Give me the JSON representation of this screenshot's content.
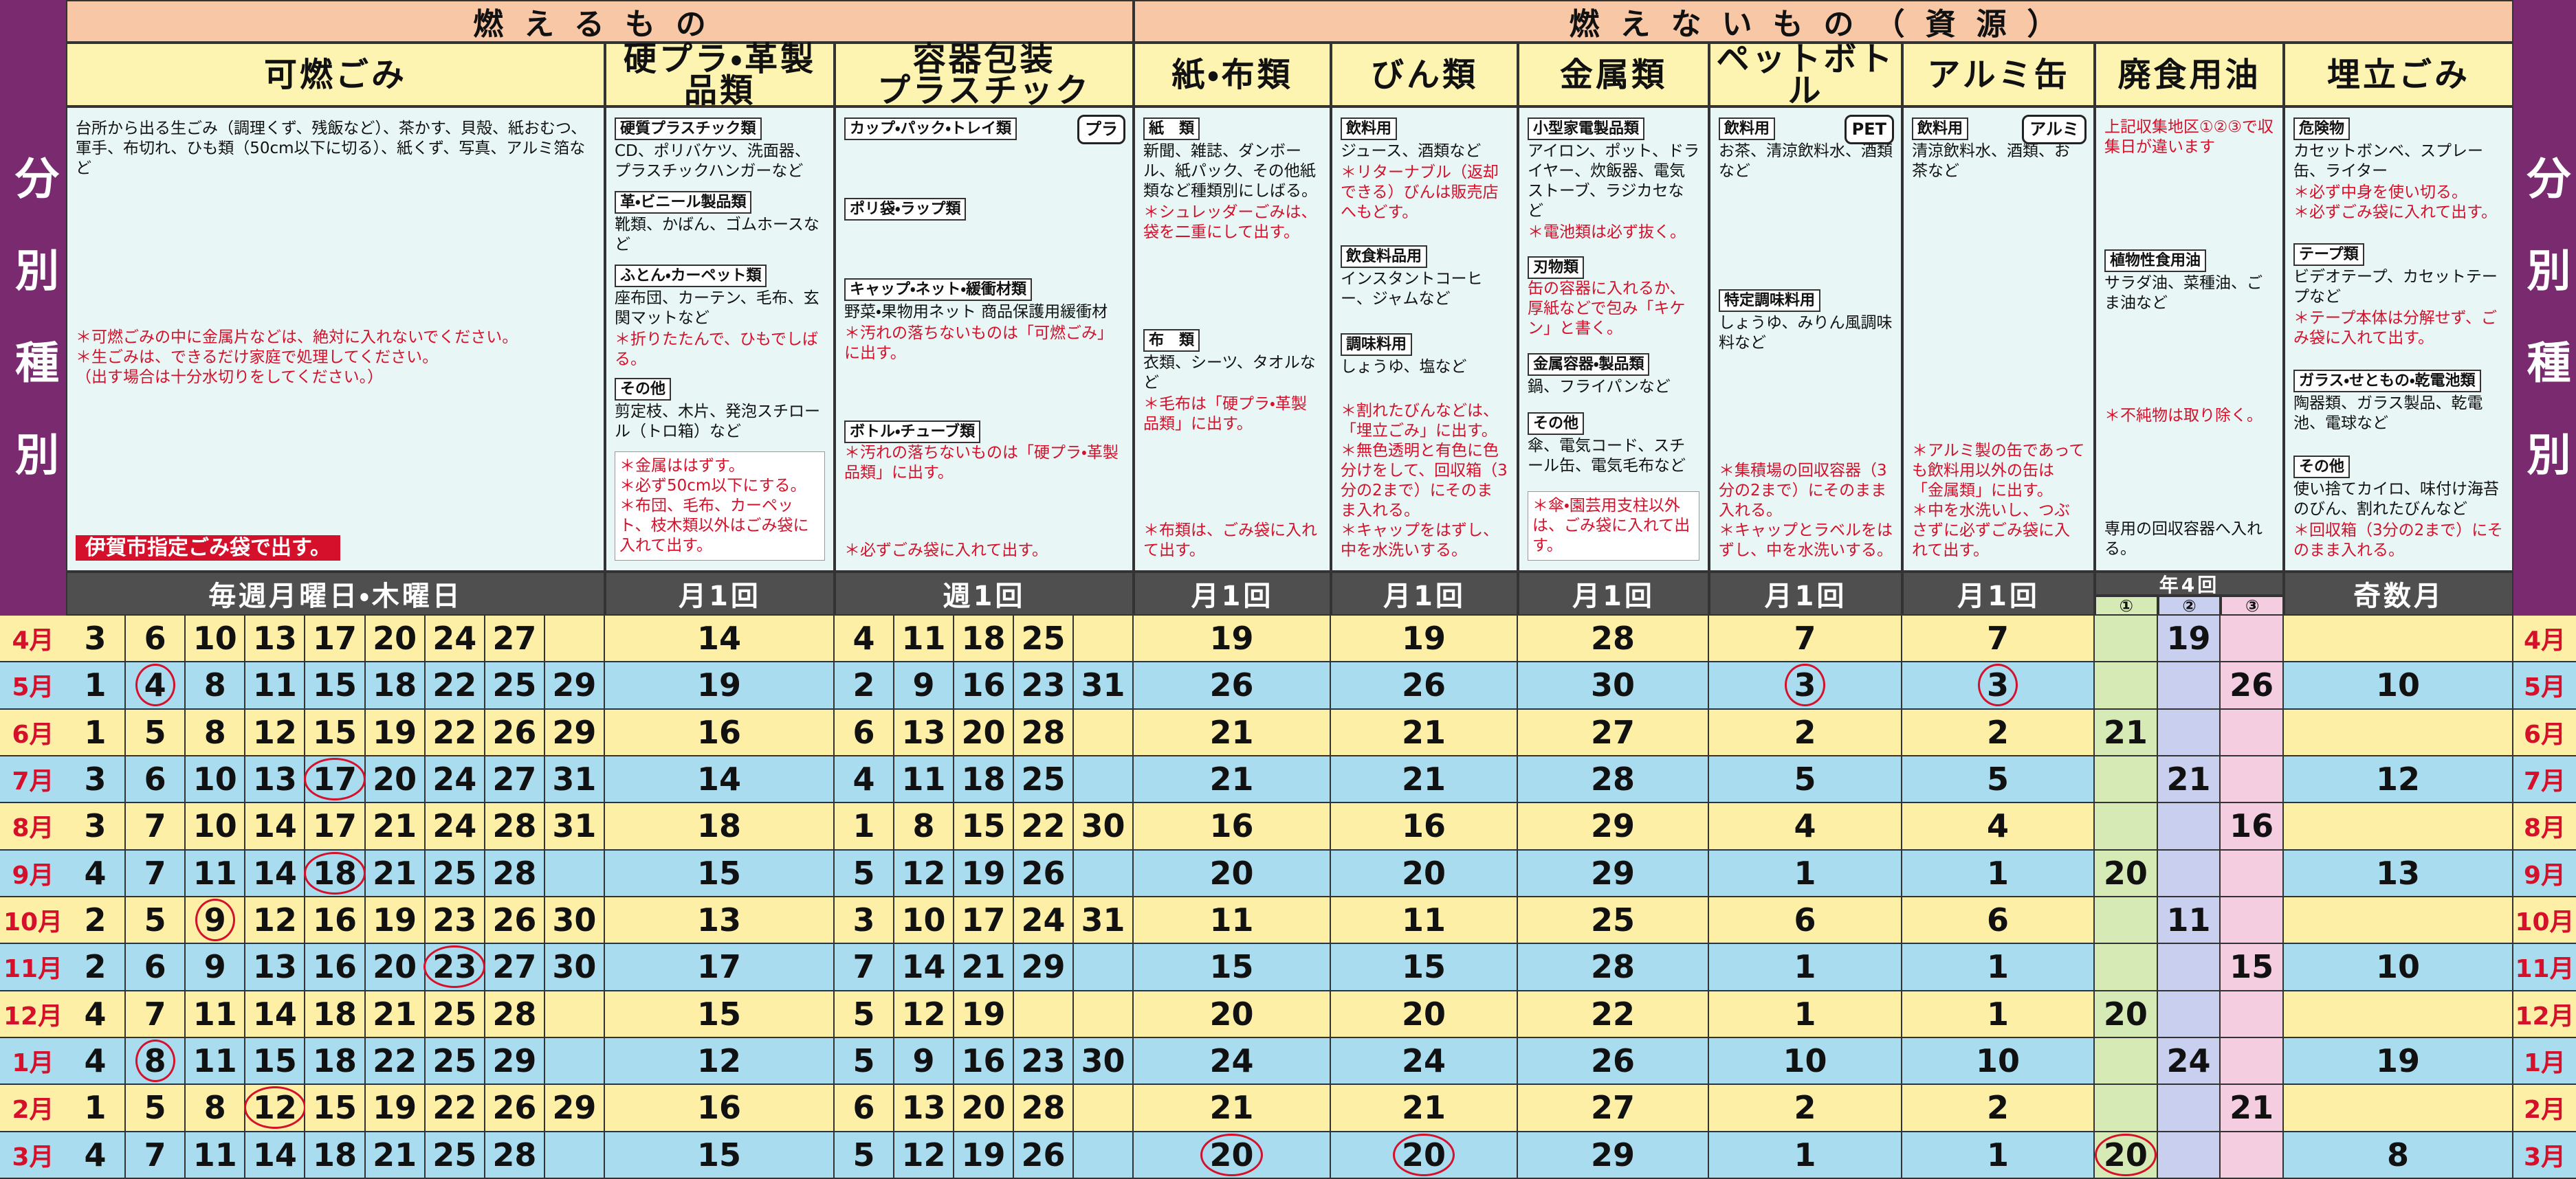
{
  "side_label": "分別種別",
  "groups": [
    {
      "title": "燃えるもの",
      "categories": [
        {
          "title": "可燃ごみ",
          "frequency": "毎週月曜日・木曜日",
          "blocks": [
            {
              "text": "台所から出る生ごみ（調理くず、残飯など）、茶かす、貝殻、紙おむつ、軍手、布切れ、ひも類（50cm以下に切る）、紙くず、写真、アルミ箔など"
            },
            {
              "notes": [
                "＊可燃ごみの中に金属片などは、絶対に入れないでください。",
                "＊生ごみは、できるだけ家庭で処理してください。",
                "（出す場合は十分水切りをしてください。）"
              ]
            }
          ],
          "badge": "伊賀市指定ごみ袋で出す。"
        },
        {
          "title": "硬プラ・革製品類",
          "frequency": "月1回",
          "blocks": [
            {
              "label": "硬質プラスチック類",
              "text": "CD、ポリバケツ、洗面器、プラスチックハンガーなど"
            },
            {
              "label": "革・ビニール製品類",
              "text": "靴類、かばん、ゴムホースなど"
            },
            {
              "label": "ふとん・カーペット類",
              "text": "座布団、カーテン、毛布、玄関マットなど",
              "notes": [
                "＊折りたたんで、ひもでしばる。"
              ]
            },
            {
              "label": "その他",
              "text": "剪定枝、木片、発泡スチロール（トロ箱）など"
            },
            {
              "notes": [
                "＊金属ははずす。",
                "＊必ず50cm以下にする。",
                "＊布団、毛布、カーペット、枝木類以外はごみ袋に入れて出す。"
              ]
            }
          ]
        },
        {
          "title": "容器包装\nプラスチック",
          "frequency": "週1回",
          "mark": "プラ",
          "blocks": [
            {
              "label": "カップ・パック・トレイ類"
            },
            {
              "label": "ポリ袋・ラップ類"
            },
            {
              "label": "キャップ・ネット・緩衝材類",
              "text": "野菜・果物用ネット 商品保護用緩衝材",
              "notes": [
                "＊汚れの落ちないものは「可燃ごみ」に出す。"
              ]
            },
            {
              "label": "ボトル・チューブ類",
              "notes": [
                "＊汚れの落ちないものは「硬プラ・革製品類」に出す。"
              ]
            },
            {
              "notes": [
                "＊必ずごみ袋に入れて出す。"
              ]
            }
          ]
        }
      ]
    },
    {
      "title": "燃えないもの（資源）",
      "categories": [
        {
          "title": "紙・布類",
          "frequency": "月1回",
          "blocks": [
            {
              "label": "紙　類",
              "text": "新聞、雑誌、ダンボール、紙パック、その他紙類など種類別にしばる。",
              "notes": [
                "＊シュレッダーごみは、袋を二重にして出す。"
              ]
            },
            {
              "label": "布　類",
              "text": "衣類、シーツ、タオルなど",
              "notes": [
                "＊毛布は「硬プラ・革製品類」に出す。"
              ]
            },
            {
              "notes": [
                "＊布類は、ごみ袋に入れて出す。"
              ]
            }
          ]
        },
        {
          "title": "びん類",
          "frequency": "月1回",
          "blocks": [
            {
              "label": "飲料用",
              "text": "ジュース、酒類など",
              "notes": [
                "＊リターナブル（返却できる）びんは販売店へもどす。"
              ]
            },
            {
              "label": "飲食料品用",
              "text": "インスタントコーヒー、ジャムなど"
            },
            {
              "label": "調味料用",
              "text": "しょうゆ、塩など"
            },
            {
              "notes": [
                "＊割れたびんなどは、「埋立ごみ」に出す。",
                "＊無色透明と有色に色分けをして、回収箱（3分の2まで）にそのまま入れる。",
                "＊キャップをはずし、中を水洗いする。"
              ]
            }
          ]
        },
        {
          "title": "金属類",
          "frequency": "月1回",
          "blocks": [
            {
              "label": "小型家電製品類",
              "text": "アイロン、ポット、ドライヤー、炊飯器、電気ストーブ、ラジカセなど",
              "notes": [
                "＊電池類は必ず抜く。"
              ]
            },
            {
              "label": "刃物類",
              "notes": [
                "缶の容器に入れるか、厚紙などで包み「キケン」と書く。"
              ]
            },
            {
              "label": "金属容器・製品類",
              "text": "鍋、フライパンなど"
            },
            {
              "label": "その他",
              "text": "傘、電気コード、スチール缶、電気毛布など"
            },
            {
              "notes": [
                "＊傘・園芸用支柱以外は、ごみ袋に入れて出す。"
              ]
            }
          ]
        },
        {
          "title": "ペットボトル",
          "frequency": "月1回",
          "mark": "PET",
          "blocks": [
            {
              "label": "飲料用",
              "text": "お茶、清涼飲料水、酒類など"
            },
            {
              "label": "特定調味料用",
              "text": "しょうゆ、みりん風調味料など"
            },
            {
              "notes": [
                "＊集積場の回収容器（3分の2まで）にそのまま入れる。",
                "＊キャップとラベルをはずし、中を水洗いする。"
              ]
            }
          ]
        },
        {
          "title": "アルミ缶",
          "frequency": "月1回",
          "mark": "アルミ",
          "blocks": [
            {
              "label": "飲料用",
              "text": "清涼飲料水、酒類、お茶など"
            },
            {
              "notes": [
                "＊アルミ製の缶であっても飲料用以外の缶は「金属類」に出す。",
                "＊中を水洗いし、つぶさずに必ずごみ袋に入れて出す。"
              ]
            }
          ]
        },
        {
          "title": "廃食用油",
          "frequency": "年4回",
          "districts": [
            "①",
            "②",
            "③"
          ],
          "blocks": [
            {
              "notes": [
                "上記収集地区①②③で収集日が違います"
              ]
            },
            {
              "label": "植物性食用油",
              "text": "サラダ油、菜種油、ごま油など"
            },
            {
              "notes": [
                "＊不純物は取り除く。"
              ]
            },
            {
              "text": "専用の回収容器へ入れる。"
            }
          ]
        },
        {
          "title": "埋立ごみ",
          "frequency": "奇数月",
          "blocks": [
            {
              "label": "危険物",
              "text": "カセットボンベ、スプレー缶、ライター",
              "notes": [
                "＊必ず中身を使い切る。",
                "＊必ずごみ袋に入れて出す。"
              ]
            },
            {
              "label": "テープ類",
              "text": "ビデオテープ、カセットテープなど",
              "notes": [
                "＊テープ本体は分解せず、ごみ袋に入れて出す。"
              ]
            },
            {
              "label": "ガラス・せともの・乾電池類",
              "text": "陶器類、ガラス製品、乾電池、電球など"
            },
            {
              "label": "その他",
              "text": "使い捨てカイロ、味付け海苔のびん、割れたびんなど",
              "notes": [
                "＊回収箱（3分の2まで）にそのまま入れる。"
              ]
            }
          ]
        }
      ]
    }
  ],
  "schedule": [
    {
      "month": "4月",
      "cells": [
        [
          3,
          6,
          10,
          13,
          17,
          20,
          24,
          27
        ],
        14,
        [
          4,
          11,
          18,
          25
        ],
        19,
        19,
        28,
        7,
        7,
        [
          null,
          19,
          null
        ],
        null
      ]
    },
    {
      "month": "5月",
      "cells": [
        [
          1,
          {
            "value": 4,
            "circled": true
          },
          8,
          11,
          15,
          18,
          22,
          25,
          29
        ],
        19,
        [
          2,
          9,
          16,
          23,
          31
        ],
        26,
        26,
        30,
        {
          "value": 3,
          "circled": true
        },
        {
          "value": 3,
          "circled": true
        },
        [
          null,
          null,
          26
        ],
        10
      ]
    },
    {
      "month": "6月",
      "cells": [
        [
          1,
          5,
          8,
          12,
          15,
          19,
          22,
          26,
          29
        ],
        16,
        [
          6,
          13,
          20,
          28
        ],
        21,
        21,
        27,
        2,
        2,
        [
          21,
          null,
          null
        ],
        null
      ]
    },
    {
      "month": "7月",
      "cells": [
        [
          3,
          6,
          10,
          13,
          {
            "value": 17,
            "circled": true
          },
          20,
          24,
          27,
          31
        ],
        14,
        [
          4,
          11,
          18,
          25
        ],
        21,
        21,
        28,
        5,
        5,
        [
          null,
          21,
          null
        ],
        12
      ]
    },
    {
      "month": "8月",
      "cells": [
        [
          3,
          7,
          10,
          14,
          17,
          21,
          24,
          28,
          31
        ],
        18,
        [
          1,
          8,
          15,
          22,
          30
        ],
        16,
        16,
        29,
        4,
        4,
        [
          null,
          null,
          16
        ],
        null
      ]
    },
    {
      "month": "9月",
      "cells": [
        [
          4,
          7,
          11,
          14,
          {
            "value": 18,
            "circled": true
          },
          21,
          25,
          28
        ],
        15,
        [
          5,
          12,
          19,
          26
        ],
        20,
        20,
        29,
        1,
        1,
        [
          20,
          null,
          null
        ],
        13
      ]
    },
    {
      "month": "10月",
      "cells": [
        [
          2,
          5,
          {
            "value": 9,
            "circled": true
          },
          12,
          16,
          19,
          23,
          26,
          30
        ],
        13,
        [
          3,
          10,
          17,
          24,
          31
        ],
        11,
        11,
        25,
        6,
        6,
        [
          null,
          11,
          null
        ],
        null
      ]
    },
    {
      "month": "11月",
      "cells": [
        [
          2,
          6,
          9,
          13,
          16,
          20,
          {
            "value": 23,
            "circled": true
          },
          27,
          30
        ],
        17,
        [
          7,
          14,
          21,
          29
        ],
        15,
        15,
        28,
        1,
        1,
        [
          null,
          null,
          15
        ],
        10
      ]
    },
    {
      "month": "12月",
      "cells": [
        [
          4,
          7,
          11,
          14,
          18,
          21,
          25,
          28
        ],
        15,
        [
          5,
          12,
          19
        ],
        20,
        20,
        22,
        1,
        1,
        [
          20,
          null,
          null
        ],
        null
      ]
    },
    {
      "month": "1月",
      "cells": [
        [
          4,
          {
            "value": 8,
            "circled": true
          },
          11,
          15,
          18,
          22,
          25,
          29
        ],
        12,
        [
          5,
          9,
          16,
          23,
          30
        ],
        24,
        24,
        26,
        10,
        10,
        [
          null,
          24,
          null
        ],
        19
      ]
    },
    {
      "month": "2月",
      "cells": [
        [
          1,
          5,
          8,
          {
            "value": 12,
            "circled": true
          },
          15,
          19,
          22,
          26,
          29
        ],
        16,
        [
          6,
          13,
          20,
          28
        ],
        21,
        21,
        27,
        2,
        2,
        [
          null,
          null,
          21
        ],
        null
      ]
    },
    {
      "month": "3月",
      "cells": [
        [
          4,
          7,
          11,
          14,
          18,
          21,
          25,
          28
        ],
        15,
        [
          5,
          12,
          19,
          26
        ],
        {
          "value": 20,
          "circled": true
        },
        {
          "value": 20,
          "circled": true
        },
        29,
        1,
        1,
        [
          {
            "value": 20,
            "circled": true
          },
          null,
          null
        ],
        8
      ]
    }
  ]
}
